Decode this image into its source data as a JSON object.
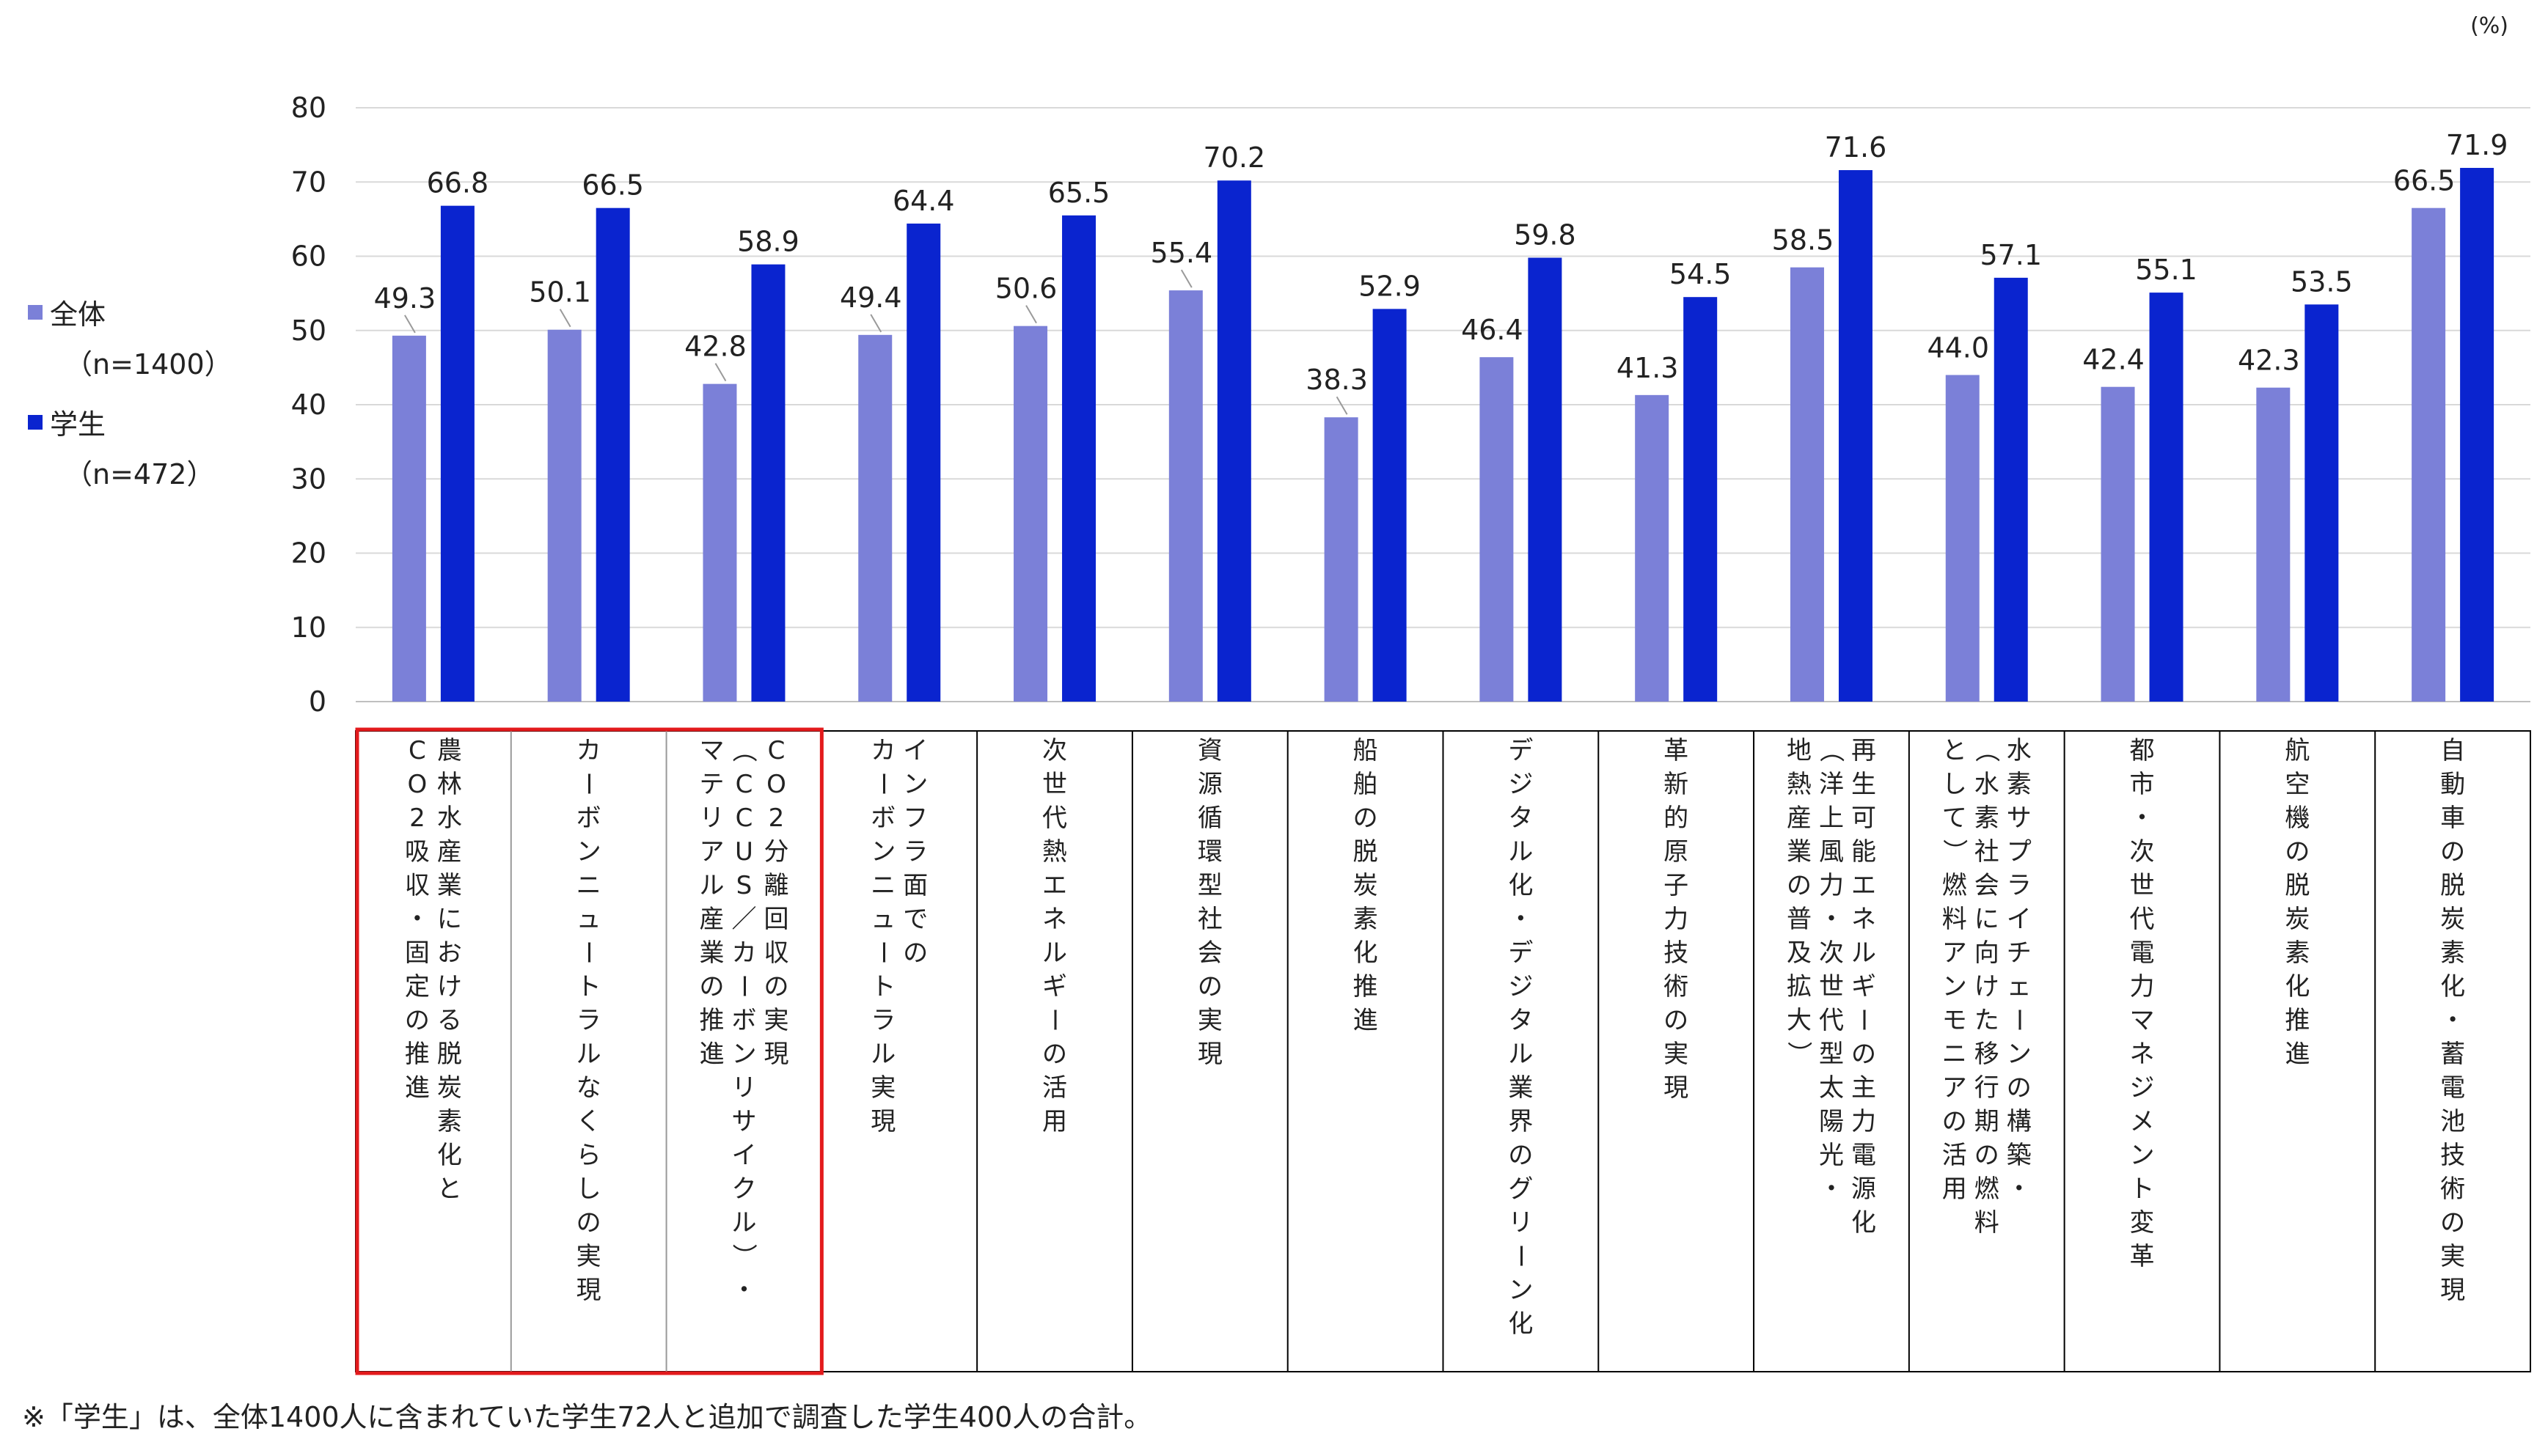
{
  "chart_data": {
    "type": "bar",
    "unit": "(%)",
    "ylim": [
      0,
      80
    ],
    "yticks": [
      0,
      10,
      20,
      30,
      40,
      50,
      60,
      70,
      80
    ],
    "grid": true,
    "legend_position": "left",
    "categories": [
      [
        "農林水産業における脱炭素化と",
        "CO2吸収・固定の推進"
      ],
      [
        "カーボンニュートラルなくらしの実現"
      ],
      [
        "CO2分離回収の実現",
        "（CCUS／カーボンリサイクル）・",
        "マテリアル産業の推進"
      ],
      [
        "インフラ面での",
        "カーボンニュートラル実現"
      ],
      [
        "次世代熱エネルギーの活用"
      ],
      [
        "資源循環型社会の実現"
      ],
      [
        "船舶の脱炭素化推進"
      ],
      [
        "デジタル化・デジタル業界のグリーン化"
      ],
      [
        "革新的原子力技術の実現"
      ],
      [
        "再生可能エネルギーの主力電源化",
        "（洋上風力・次世代型太陽光・",
        "地熱産業の普及拡大）"
      ],
      [
        "水素サプライチェーンの構築・",
        "（水素社会に向けた移行期の燃料",
        "として）燃料アンモニアの活用"
      ],
      [
        "都市・次世代電力マネジメント変革"
      ],
      [
        "航空機の脱炭素化推進"
      ],
      [
        "自動車の脱炭素化・蓄電池技術の実現"
      ]
    ],
    "series": [
      {
        "name": "全体",
        "sublabel": "（n=1400）",
        "color": "#7b80d8",
        "values": [
          49.3,
          50.1,
          42.8,
          49.4,
          50.6,
          55.4,
          38.3,
          46.4,
          41.3,
          58.5,
          44.0,
          42.4,
          42.3,
          66.5
        ],
        "labels": [
          "49.3",
          "50.1",
          "42.8",
          "49.4",
          "50.6",
          "55.4",
          "38.3",
          "46.4",
          "41.3",
          "58.5",
          "44.0",
          "42.4",
          "42.3",
          "66.5"
        ]
      },
      {
        "name": "学生",
        "sublabel": "（n=472）",
        "color": "#0a24cf",
        "values": [
          66.8,
          66.5,
          58.9,
          64.4,
          65.5,
          70.2,
          52.9,
          59.8,
          54.5,
          71.6,
          57.1,
          55.1,
          53.5,
          71.9
        ],
        "labels": [
          "66.8",
          "66.5",
          "58.9",
          "64.4",
          "65.5",
          "70.2",
          "52.9",
          "59.8",
          "54.5",
          "71.6",
          "57.1",
          "55.1",
          "53.5",
          "71.9"
        ]
      }
    ],
    "highlighted_categories": [
      0,
      1,
      2
    ],
    "highlight_color": "#e31a1c",
    "footnote": "※「学生」は、全体1400人に含まれていた学生72人と追加で調査した学生400人の合計。"
  }
}
